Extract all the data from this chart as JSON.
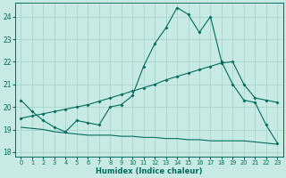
{
  "xlabel": "Humidex (Indice chaleur)",
  "bg_color": "#c8eae4",
  "line_color": "#006b5e",
  "grid_color": "#a8d5ce",
  "xlim": [
    -0.5,
    23.5
  ],
  "ylim": [
    17.8,
    24.6
  ],
  "xticks": [
    0,
    1,
    2,
    3,
    4,
    5,
    6,
    7,
    8,
    9,
    10,
    11,
    12,
    13,
    14,
    15,
    16,
    17,
    18,
    19,
    20,
    21,
    22,
    23
  ],
  "yticks": [
    18,
    19,
    20,
    21,
    22,
    23,
    24
  ],
  "curve1_x": [
    0,
    1,
    2,
    3,
    4,
    5,
    6,
    7,
    8,
    9,
    10,
    11,
    12,
    13,
    14,
    15,
    16,
    17,
    18,
    19,
    20,
    21,
    22,
    23
  ],
  "curve1_y": [
    20.3,
    19.8,
    19.4,
    19.1,
    18.9,
    19.4,
    19.3,
    19.2,
    20.0,
    20.1,
    20.5,
    21.8,
    22.8,
    23.5,
    24.4,
    24.1,
    23.3,
    24.0,
    22.0,
    21.0,
    20.3,
    20.2,
    19.2,
    18.4
  ],
  "curve2_x": [
    0,
    1,
    2,
    3,
    4,
    5,
    6,
    7,
    8,
    9,
    10,
    11,
    12,
    13,
    14,
    15,
    16,
    17,
    18,
    19,
    20,
    21,
    22,
    23
  ],
  "curve2_y": [
    19.5,
    19.6,
    19.7,
    19.8,
    19.9,
    20.0,
    20.1,
    20.25,
    20.4,
    20.55,
    20.7,
    20.85,
    21.0,
    21.2,
    21.35,
    21.5,
    21.65,
    21.8,
    21.95,
    22.0,
    21.0,
    20.4,
    20.3,
    20.2
  ],
  "curve3_x": [
    0,
    1,
    2,
    3,
    4,
    5,
    6,
    7,
    8,
    9,
    10,
    11,
    12,
    13,
    14,
    15,
    16,
    17,
    18,
    19,
    20,
    21,
    22,
    23
  ],
  "curve3_y": [
    19.1,
    19.05,
    19.0,
    18.9,
    18.85,
    18.8,
    18.75,
    18.75,
    18.75,
    18.7,
    18.7,
    18.65,
    18.65,
    18.6,
    18.6,
    18.55,
    18.55,
    18.5,
    18.5,
    18.5,
    18.5,
    18.45,
    18.4,
    18.35
  ]
}
